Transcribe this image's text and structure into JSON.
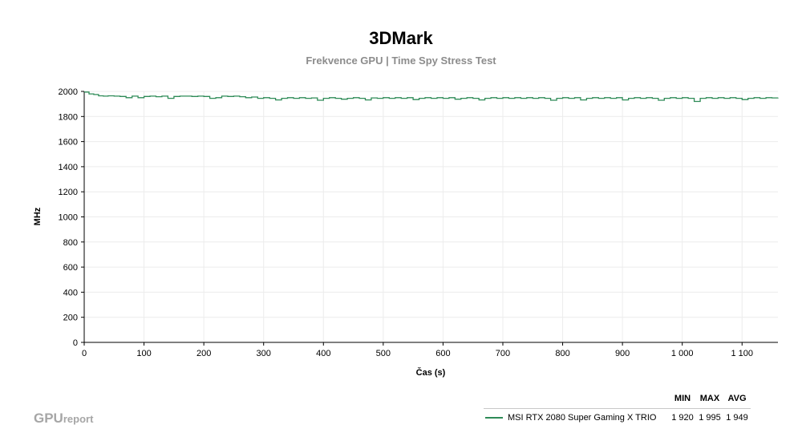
{
  "chart_data": {
    "type": "line",
    "title": "3DMark",
    "subtitle": "Frekvence GPU | Time Spy Stress Test",
    "xlabel": "Čas (s)",
    "ylabel": "MHz",
    "xlim": [
      0,
      1160
    ],
    "ylim": [
      0,
      2000
    ],
    "x_ticks": [
      0,
      100,
      200,
      300,
      400,
      500,
      600,
      700,
      800,
      900,
      1000,
      1100
    ],
    "x_tick_labels": [
      "0",
      "100",
      "200",
      "300",
      "400",
      "500",
      "600",
      "700",
      "800",
      "900",
      "1 000",
      "1 100"
    ],
    "y_ticks": [
      0,
      200,
      400,
      600,
      800,
      1000,
      1200,
      1400,
      1600,
      1800,
      2000
    ],
    "y_tick_labels": [
      "0",
      "200",
      "400",
      "600",
      "800",
      "1000",
      "1200",
      "1400",
      "1600",
      "1800",
      "2000"
    ],
    "grid": true,
    "series": [
      {
        "name": "MSI RTX 2080 Super Gaming X TRIO",
        "color": "#2e8b57",
        "x": [
          0,
          8,
          16,
          24,
          32,
          40,
          50,
          60,
          70,
          80,
          90,
          100,
          110,
          120,
          130,
          140,
          150,
          160,
          170,
          180,
          190,
          200,
          210,
          220,
          230,
          240,
          250,
          260,
          270,
          280,
          290,
          300,
          310,
          320,
          330,
          340,
          350,
          360,
          370,
          380,
          390,
          400,
          410,
          420,
          430,
          440,
          450,
          460,
          470,
          480,
          490,
          500,
          510,
          520,
          530,
          540,
          550,
          560,
          570,
          580,
          590,
          600,
          610,
          620,
          630,
          640,
          650,
          660,
          670,
          680,
          690,
          700,
          710,
          720,
          730,
          740,
          750,
          760,
          770,
          780,
          790,
          800,
          810,
          820,
          830,
          840,
          850,
          860,
          870,
          880,
          890,
          900,
          910,
          920,
          930,
          940,
          950,
          960,
          970,
          980,
          990,
          1000,
          1010,
          1020,
          1030,
          1040,
          1050,
          1060,
          1070,
          1080,
          1090,
          1100,
          1110,
          1120,
          1130,
          1140,
          1150,
          1160
        ],
        "values": [
          1995,
          1980,
          1975,
          1965,
          1962,
          1965,
          1962,
          1960,
          1950,
          1962,
          1950,
          1960,
          1962,
          1958,
          1962,
          1945,
          1960,
          1962,
          1962,
          1960,
          1962,
          1960,
          1945,
          1950,
          1962,
          1960,
          1962,
          1958,
          1950,
          1955,
          1945,
          1950,
          1945,
          1932,
          1945,
          1950,
          1945,
          1950,
          1945,
          1948,
          1930,
          1945,
          1950,
          1945,
          1938,
          1945,
          1950,
          1945,
          1932,
          1948,
          1945,
          1950,
          1945,
          1950,
          1945,
          1950,
          1935,
          1945,
          1950,
          1945,
          1950,
          1945,
          1950,
          1938,
          1945,
          1950,
          1945,
          1932,
          1945,
          1950,
          1945,
          1950,
          1945,
          1950,
          1945,
          1950,
          1945,
          1950,
          1945,
          1930,
          1945,
          1950,
          1945,
          1950,
          1932,
          1945,
          1950,
          1945,
          1950,
          1945,
          1950,
          1932,
          1945,
          1950,
          1945,
          1950,
          1945,
          1930,
          1945,
          1950,
          1945,
          1950,
          1945,
          1920,
          1945,
          1950,
          1945,
          1950,
          1945,
          1950,
          1945,
          1935,
          1945,
          1950,
          1945,
          1950,
          1948,
          1950
        ]
      }
    ],
    "legend": {
      "placement": "bottom-right",
      "columns": [
        "MIN",
        "MAX",
        "AVG"
      ],
      "rows": [
        {
          "name": "MSI RTX 2080 Super Gaming X TRIO",
          "min": "1 920",
          "max": "1 995",
          "avg": "1 949"
        }
      ]
    }
  },
  "watermark": {
    "part1": "GPU",
    "part2": "report"
  }
}
